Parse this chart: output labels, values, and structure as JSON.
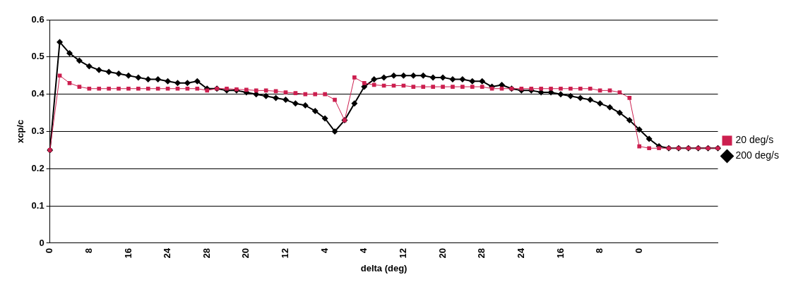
{
  "chart_data": {
    "type": "line",
    "xlabel": "delta (deg)",
    "ylabel": "xcp/c",
    "categories": [
      "0",
      null,
      null,
      null,
      "8",
      null,
      null,
      null,
      "16",
      null,
      null,
      null,
      "24",
      null,
      null,
      null,
      "28",
      null,
      null,
      null,
      "20",
      null,
      null,
      null,
      "12",
      null,
      null,
      null,
      "4",
      null,
      null,
      null,
      "4",
      null,
      null,
      null,
      "12",
      null,
      null,
      null,
      "20",
      null,
      null,
      null,
      "28",
      null,
      null,
      null,
      "24",
      null,
      null,
      null,
      "16",
      null,
      null,
      null,
      "8",
      null,
      null,
      null,
      "0",
      null,
      null,
      null,
      null,
      null,
      null,
      null,
      null
    ],
    "series": [
      {
        "name": "200 deg/s",
        "color": "#000000",
        "marker": "diamond",
        "line_style": "solid",
        "values": [
          0.25,
          0.54,
          0.51,
          0.49,
          0.475,
          0.465,
          0.46,
          0.455,
          0.45,
          0.445,
          0.44,
          0.44,
          0.435,
          0.43,
          0.43,
          0.435,
          0.415,
          0.415,
          0.41,
          0.41,
          0.405,
          0.4,
          0.395,
          0.39,
          0.385,
          0.375,
          0.37,
          0.355,
          0.335,
          0.3,
          0.33,
          0.375,
          0.42,
          0.44,
          0.445,
          0.45,
          0.45,
          0.45,
          0.45,
          0.445,
          0.445,
          0.44,
          0.44,
          0.435,
          0.435,
          0.42,
          0.425,
          0.415,
          0.41,
          0.41,
          0.405,
          0.405,
          0.4,
          0.395,
          0.39,
          0.385,
          0.375,
          0.365,
          0.35,
          0.33,
          0.305,
          0.28,
          0.26,
          0.255,
          0.255,
          0.255,
          0.255,
          0.255,
          0.255
        ]
      },
      {
        "name": "20 deg/s",
        "color": "#cc1f4f",
        "marker": "square",
        "line_style": "solid",
        "values": [
          0.25,
          0.45,
          0.43,
          0.42,
          0.415,
          0.415,
          0.415,
          0.415,
          0.415,
          0.415,
          0.415,
          0.415,
          0.415,
          0.415,
          0.415,
          0.415,
          0.41,
          0.415,
          0.415,
          0.413,
          0.412,
          0.41,
          0.41,
          0.408,
          0.405,
          0.403,
          0.4,
          0.4,
          0.4,
          0.385,
          0.33,
          0.445,
          0.43,
          0.425,
          0.423,
          0.423,
          0.423,
          0.42,
          0.42,
          0.42,
          0.42,
          0.42,
          0.42,
          0.42,
          0.42,
          0.415,
          0.415,
          0.415,
          0.415,
          0.415,
          0.415,
          0.415,
          0.415,
          0.415,
          0.415,
          0.415,
          0.41,
          0.41,
          0.405,
          0.39,
          0.26,
          0.255,
          0.255,
          0.255,
          0.255,
          0.255,
          0.255,
          0.255,
          0.255
        ]
      }
    ],
    "ylim": [
      0,
      0.6
    ],
    "yticks": [
      0,
      0.1,
      0.2,
      0.3,
      0.4,
      0.5,
      0.6
    ],
    "grid": "y",
    "legend": "right"
  }
}
